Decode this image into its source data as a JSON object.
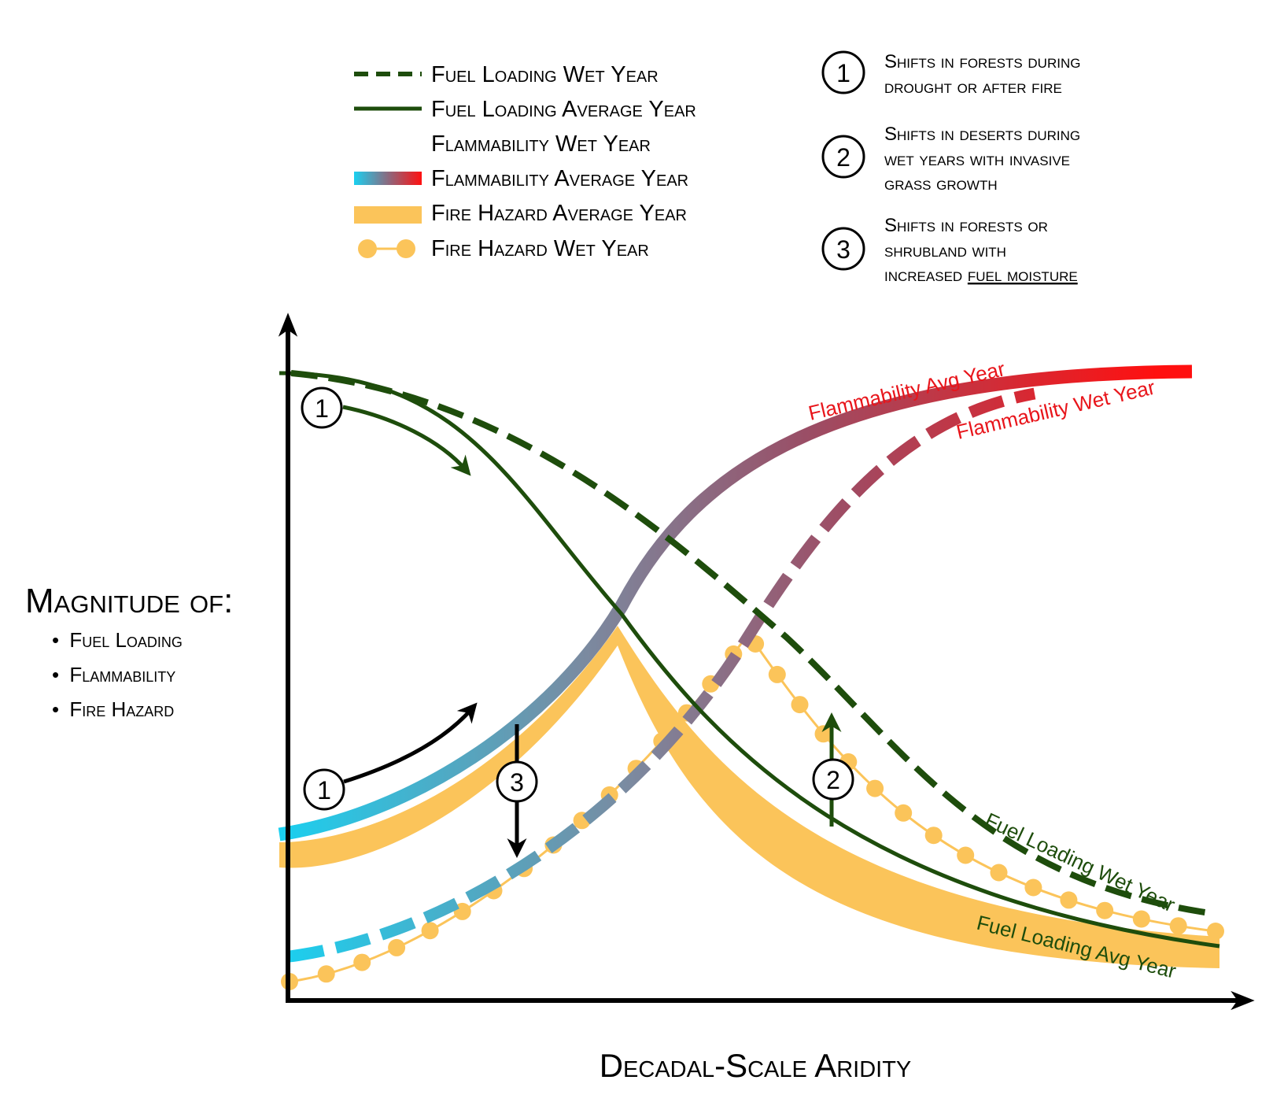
{
  "legend": [
    {
      "key": "fuel_wet",
      "label": "Fuel Loading Wet Year"
    },
    {
      "key": "fuel_avg",
      "label": "Fuel Loading Average Year"
    },
    {
      "key": "flam_wet",
      "label": "Flammability Wet Year"
    },
    {
      "key": "flam_avg",
      "label": "Flammability Average Year"
    },
    {
      "key": "hazard_avg",
      "label": "Fire Hazard Average Year"
    },
    {
      "key": "hazard_wet",
      "label": "Fire Hazard Wet Year"
    }
  ],
  "notes": [
    {
      "num": "1",
      "lines": [
        "Shifts in forests during",
        "drought or after fire"
      ]
    },
    {
      "num": "2",
      "lines": [
        "Shifts in deserts during",
        "wet years with invasive",
        "grass growth"
      ]
    },
    {
      "num": "3",
      "lines": [
        "Shifts in forests or",
        "shrubland with",
        "increased"
      ],
      "underlined": "fuel moisture"
    }
  ],
  "y_axis": {
    "title": "Magnitude of:",
    "items": [
      "Fuel Loading",
      "Flammability",
      "Fire Hazard"
    ]
  },
  "x_axis": {
    "title": "Decadal-Scale Aridity"
  },
  "curve_labels": {
    "flam_avg": "Flammability Avg Year",
    "flam_wet": "Flammability Wet Year",
    "fuel_wet": "Fuel Loading Wet Year",
    "fuel_avg": "Fuel Loading Avg Year"
  },
  "markers": {
    "one_top": "1",
    "one_bottom": "1",
    "two": "2",
    "three": "3"
  },
  "colors": {
    "fuel": "#1e4d0c",
    "flam_low": "#1ad0f0",
    "flam_mid": "#8a6a80",
    "flam_high": "#ff1010",
    "hazard": "#fbc45a",
    "flam_label": "#e8151b",
    "fuel_label": "#1e4d0c"
  }
}
